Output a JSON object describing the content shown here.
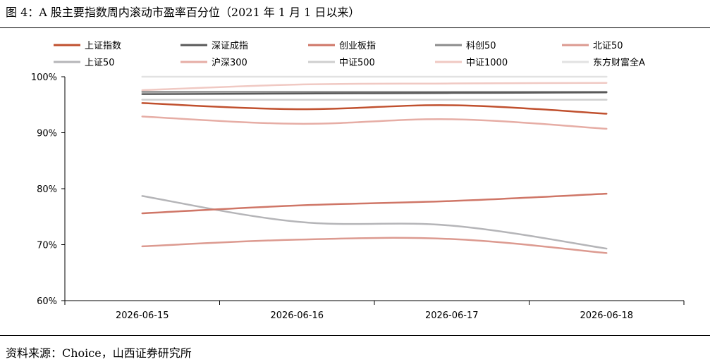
{
  "caption": "图 4：A 股主要指数周内滚动市盈率百分位（2021 年 1 月 1 日以来）",
  "source": "资料来源：Choice，山西证券研究所",
  "chart_data": {
    "type": "line",
    "title": "",
    "xlabel": "",
    "ylabel": "",
    "x": [
      "2026-06-15",
      "2026-06-16",
      "2026-06-17",
      "2026-06-18"
    ],
    "ylim": [
      60,
      100
    ],
    "yticks": [
      60,
      70,
      80,
      90,
      100
    ],
    "ytick_labels": [
      "60%",
      "70%",
      "80%",
      "90%",
      "100%"
    ],
    "legend_position": "top",
    "grid": false,
    "series": [
      {
        "name": "上证指数",
        "color": "#C0502E",
        "width": 2.5,
        "values": [
          95.3,
          94.2,
          94.9,
          93.4
        ]
      },
      {
        "name": "深证成指",
        "color": "#595959",
        "width": 2.5,
        "values": [
          96.9,
          97.0,
          97.1,
          97.2
        ]
      },
      {
        "name": "创业板指",
        "color": "#CF7667",
        "width": 2.5,
        "values": [
          75.6,
          77.0,
          77.8,
          79.1
        ]
      },
      {
        "name": "科创50",
        "color": "#8C8C8C",
        "width": 2.5,
        "values": [
          97.3,
          97.3,
          97.3,
          97.3
        ]
      },
      {
        "name": "北证50",
        "color": "#DC9A90",
        "width": 2.5,
        "values": [
          69.7,
          70.9,
          71.0,
          68.5
        ]
      },
      {
        "name": "上证50",
        "color": "#B5B5B8",
        "width": 2.5,
        "values": [
          78.7,
          74.1,
          73.4,
          69.3
        ]
      },
      {
        "name": "沪深300",
        "color": "#E6ADA5",
        "width": 2.5,
        "values": [
          92.9,
          91.6,
          92.4,
          90.7
        ]
      },
      {
        "name": "中证500",
        "color": "#CFCFCF",
        "width": 2.5,
        "values": [
          95.9,
          95.9,
          95.9,
          95.9
        ]
      },
      {
        "name": "中证1000",
        "color": "#F0C9C3",
        "width": 2.5,
        "values": [
          97.6,
          98.6,
          98.8,
          98.9
        ]
      },
      {
        "name": "东方财富全A",
        "color": "#E2E2E2",
        "width": 2.5,
        "values": [
          100,
          100,
          100,
          100
        ]
      }
    ]
  }
}
